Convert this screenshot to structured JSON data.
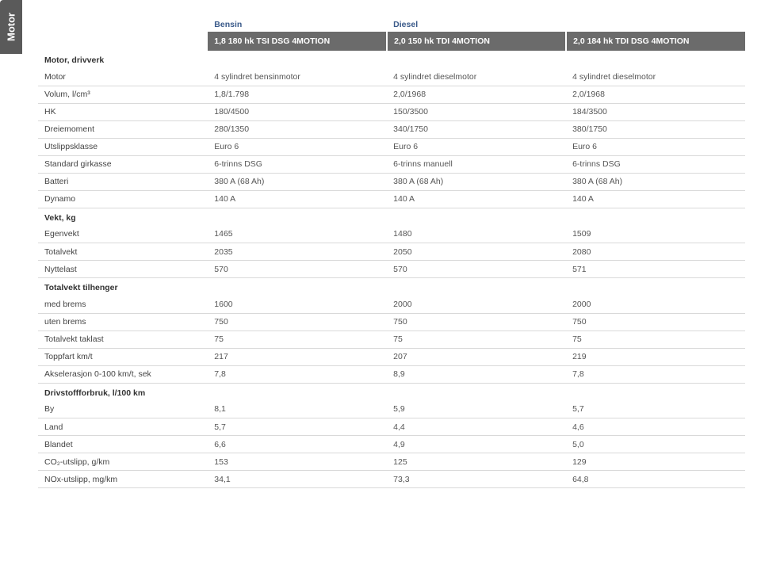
{
  "sideTab": "Motor",
  "fuelHeaders": {
    "col2": "Bensin",
    "col3": "Diesel",
    "col4": ""
  },
  "engineHeaders": {
    "col2": "1,8 180 hk TSI DSG 4MOTION",
    "col3": "2,0 150 hk TDI 4MOTION",
    "col4": "2,0 184 hk TDI DSG 4MOTION"
  },
  "sections": {
    "motorDrivverk": "Motor, drivverk",
    "vektKg": "Vekt, kg",
    "totalvektTilhenger": "Totalvekt tilhenger",
    "drivstoff": "Drivstoffforbruk, l/100 km"
  },
  "rows": {
    "motor": {
      "label": "Motor",
      "c2": "4 sylindret bensinmotor",
      "c3": "4 sylindret dieselmotor",
      "c4": "4 sylindret dieselmotor"
    },
    "volum": {
      "label": "Volum, l/cm³",
      "c2": "1,8/1.798",
      "c3": "2,0/1968",
      "c4": "2,0/1968"
    },
    "hk": {
      "label": "HK",
      "c2": "180/4500",
      "c3": "150/3500",
      "c4": "184/3500"
    },
    "dreiemoment": {
      "label": "Dreiemoment",
      "c2": "280/1350",
      "c3": "340/1750",
      "c4": "380/1750"
    },
    "utslipps": {
      "label": "Utslippsklasse",
      "c2": "Euro 6",
      "c3": "Euro 6",
      "c4": "Euro 6"
    },
    "girkasse": {
      "label": "Standard girkasse",
      "c2": "6-trinns DSG",
      "c3": "6-trinns manuell",
      "c4": "6-trinns DSG"
    },
    "batteri": {
      "label": "Batteri",
      "c2": "380 A (68 Ah)",
      "c3": "380 A (68 Ah)",
      "c4": "380 A (68 Ah)"
    },
    "dynamo": {
      "label": "Dynamo",
      "c2": "140 A",
      "c3": "140 A",
      "c4": "140 A"
    },
    "egenvekt": {
      "label": "Egenvekt",
      "c2": "1465",
      "c3": "1480",
      "c4": "1509"
    },
    "totalvekt": {
      "label": "Totalvekt",
      "c2": "2035",
      "c3": "2050",
      "c4": "2080"
    },
    "nyttelast": {
      "label": "Nyttelast",
      "c2": "570",
      "c3": "570",
      "c4": "571"
    },
    "medbrems": {
      "label": "med brems",
      "c2": "1600",
      "c3": "2000",
      "c4": "2000"
    },
    "utenbrems": {
      "label": "uten brems",
      "c2": "750",
      "c3": "750",
      "c4": "750"
    },
    "taklast": {
      "label": "Totalvekt taklast",
      "c2": "75",
      "c3": "75",
      "c4": "75"
    },
    "toppfart": {
      "label": "Toppfart km/t",
      "c2": "217",
      "c3": "207",
      "c4": "219"
    },
    "aksel": {
      "label": "Akselerasjon 0-100 km/t, sek",
      "c2": "7,8",
      "c3": "8,9",
      "c4": "7,8"
    },
    "by": {
      "label": "By",
      "c2": "8,1",
      "c3": "5,9",
      "c4": "5,7"
    },
    "land": {
      "label": "Land",
      "c2": "5,7",
      "c3": "4,4",
      "c4": "4,6"
    },
    "blandet": {
      "label": "Blandet",
      "c2": "6,6",
      "c3": "4,9",
      "c4": "5,0"
    },
    "co2": {
      "label": "CO₂-utslipp, g/km",
      "c2": "153",
      "c3": "125",
      "c4": "129"
    },
    "nox": {
      "label": "NOx-utslipp, mg/km",
      "c2": "34,1",
      "c3": "73,3",
      "c4": "64,8"
    }
  }
}
